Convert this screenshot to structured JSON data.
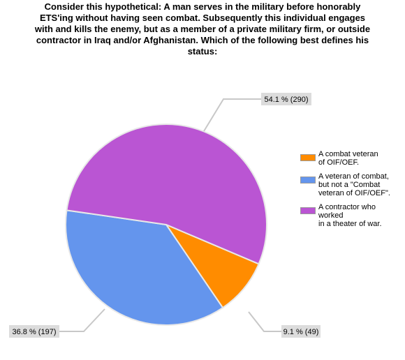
{
  "chart_data": {
    "type": "pie",
    "title": "Consider this hypothetical:  A man serves in the military before honorably\nETS'ing without having seen combat.  Subsequently this individual engages\nwith and kills the enemy, but as a member of a private military firm, or outside\ncontractor in Iraq and/or Afghanistan.  Which of the following best defines his\nstatus:",
    "slices": [
      {
        "label": "A combat veteran\nof OIF/OEF.",
        "percent": 9.1,
        "count": 49,
        "data_label": "9.1 % (49)",
        "color": "#ff8c00"
      },
      {
        "label": "A veteran of combat,\nbut not a \"Combat\nveteran of OIF/OEF\".",
        "percent": 36.8,
        "count": 197,
        "data_label": "36.8 % (197)",
        "color": "#6495ed"
      },
      {
        "label": "A contractor who worked\nin a theater of war.",
        "percent": 54.1,
        "count": 290,
        "data_label": "54.1 % (290)",
        "color": "#ba55d3"
      }
    ],
    "legend_position": "right",
    "label_background": "#dcdcdc",
    "leader_line_color": "#c8c8c8"
  }
}
